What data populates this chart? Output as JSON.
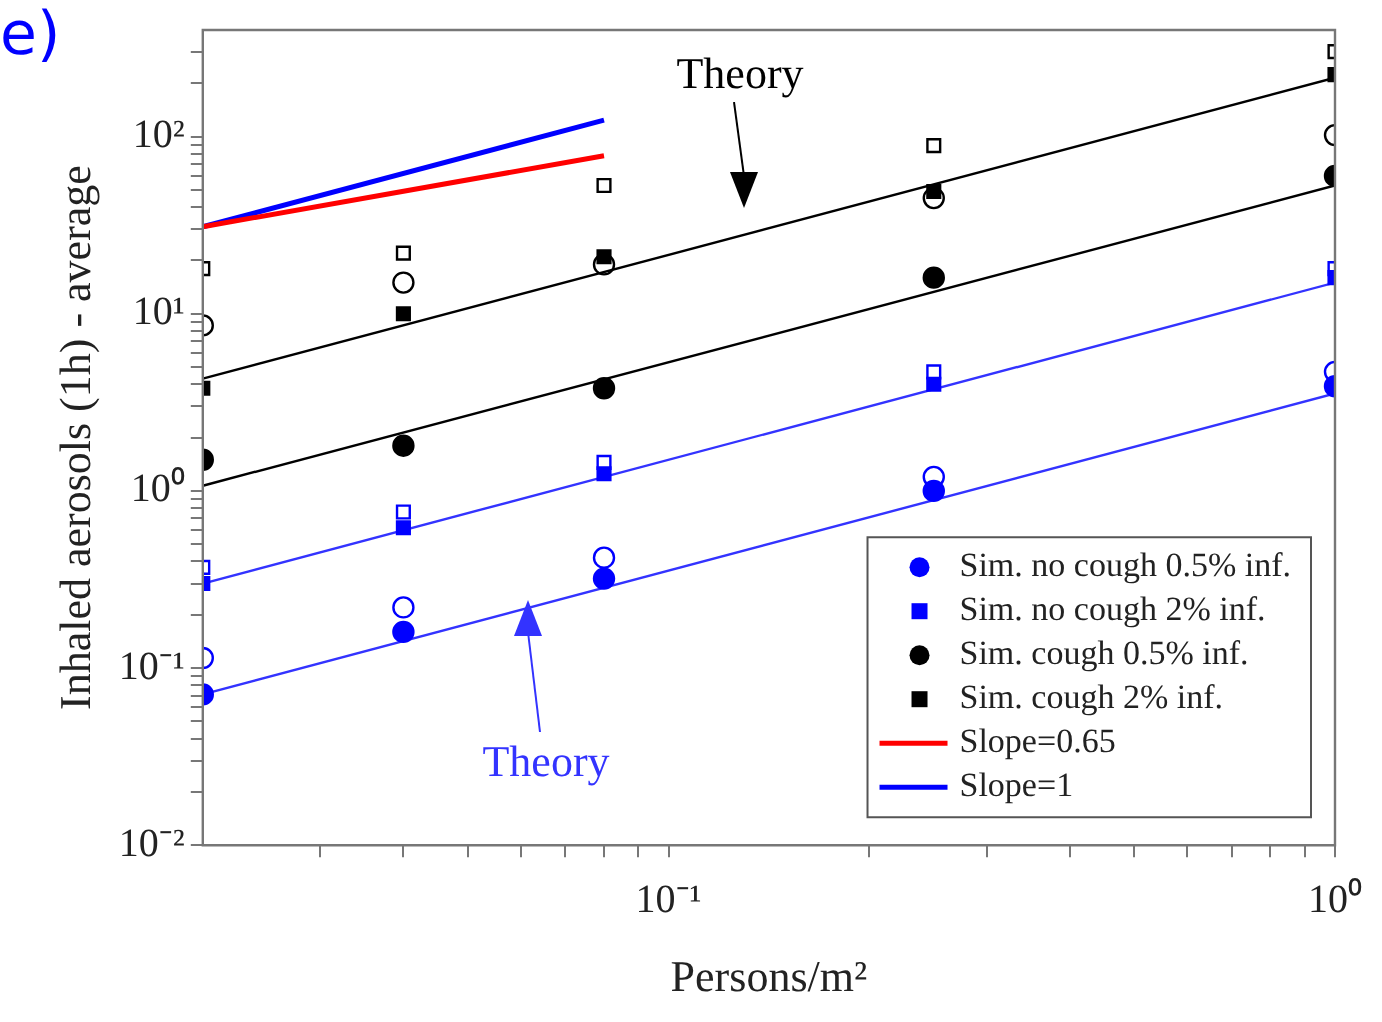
{
  "chart_data": {
    "type": "scatter",
    "title": "e)",
    "xlabel": "Persons/m²",
    "ylabel": "Inhaled aerosols (1h) - average",
    "log": "xy",
    "legend": "bottom right",
    "x": [
      0.02,
      0.04,
      0.08,
      0.25,
      1
    ],
    "xlim": [
      0.02,
      1
    ],
    "ylim": [
      0.01,
      400
    ],
    "xticks": [
      {
        "value": 0.03,
        "label": null
      },
      {
        "value": 0.04,
        "label": null
      },
      {
        "value": 0.05,
        "label": null
      },
      {
        "value": 0.06,
        "label": null
      },
      {
        "value": 0.07,
        "label": null
      },
      {
        "value": 0.08,
        "label": null
      },
      {
        "value": 0.09,
        "label": null
      },
      {
        "value": 0.1,
        "label": "10⁻¹"
      },
      {
        "value": 0.2,
        "label": null
      },
      {
        "value": 0.3,
        "label": null
      },
      {
        "value": 0.4,
        "label": null
      },
      {
        "value": 0.5,
        "label": null
      },
      {
        "value": 0.6,
        "label": null
      },
      {
        "value": 0.7,
        "label": null
      },
      {
        "value": 0.8,
        "label": null
      },
      {
        "value": 0.9,
        "label": null
      },
      {
        "value": 1,
        "label": "10⁰"
      }
    ],
    "yticks": [
      {
        "value": 0.01,
        "label": "10⁻²"
      },
      {
        "value": 0.02,
        "label": null
      },
      {
        "value": 0.03,
        "label": null
      },
      {
        "value": 0.04,
        "label": null
      },
      {
        "value": 0.05,
        "label": null
      },
      {
        "value": 0.06,
        "label": null
      },
      {
        "value": 0.07,
        "label": null
      },
      {
        "value": 0.08,
        "label": null
      },
      {
        "value": 0.09,
        "label": null
      },
      {
        "value": 0.1,
        "label": "10⁻¹"
      },
      {
        "value": 0.2,
        "label": null
      },
      {
        "value": 0.3,
        "label": null
      },
      {
        "value": 0.4,
        "label": null
      },
      {
        "value": 0.5,
        "label": null
      },
      {
        "value": 0.6,
        "label": null
      },
      {
        "value": 0.7,
        "label": null
      },
      {
        "value": 0.8,
        "label": null
      },
      {
        "value": 0.9,
        "label": null
      },
      {
        "value": 1,
        "label": "10⁰"
      },
      {
        "value": 2,
        "label": null
      },
      {
        "value": 3,
        "label": null
      },
      {
        "value": 4,
        "label": null
      },
      {
        "value": 5,
        "label": null
      },
      {
        "value": 6,
        "label": null
      },
      {
        "value": 7,
        "label": null
      },
      {
        "value": 8,
        "label": null
      },
      {
        "value": 9,
        "label": null
      },
      {
        "value": 10,
        "label": "10¹"
      },
      {
        "value": 20,
        "label": null
      },
      {
        "value": 30,
        "label": null
      },
      {
        "value": 40,
        "label": null
      },
      {
        "value": 50,
        "label": null
      },
      {
        "value": 60,
        "label": null
      },
      {
        "value": 70,
        "label": null
      },
      {
        "value": 80,
        "label": null
      },
      {
        "value": 90,
        "label": null
      },
      {
        "value": 100,
        "label": "10²"
      },
      {
        "value": 200,
        "label": null
      },
      {
        "value": 300,
        "label": null
      }
    ],
    "series": [
      {
        "name": "Sim. no cough 0.5% inf.",
        "marker": "circle",
        "color": "#0000ff",
        "values": [
          0.071,
          0.16,
          0.32,
          1.0,
          3.9
        ]
      },
      {
        "name": "Sim. no cough 2% inf.",
        "marker": "square",
        "color": "#0000ff",
        "values": [
          0.3,
          0.62,
          1.25,
          4.0,
          16
        ]
      },
      {
        "name": "Sim. cough 0.5% inf.",
        "marker": "circle",
        "color": "#000000",
        "values": [
          1.5,
          1.8,
          3.8,
          16,
          60
        ]
      },
      {
        "name": "Sim. cough 2% inf.",
        "marker": "square",
        "color": "#000000",
        "values": [
          3.8,
          10,
          21,
          49,
          224
        ]
      },
      {
        "marker": "circle",
        "color": "#0000ff",
        "values": [
          0.114,
          0.22,
          0.42,
          1.2,
          4.7
        ]
      },
      {
        "marker": "square",
        "color": "#0000ff",
        "values": [
          0.37,
          0.76,
          1.45,
          4.7,
          18
        ]
      },
      {
        "marker": "circle",
        "color": "#000000",
        "values": [
          8.6,
          15,
          19,
          45,
          102
        ]
      },
      {
        "marker": "square",
        "color": "#000000",
        "values": [
          18,
          22,
          53,
          89,
          302
        ]
      },
      {
        "type": "line",
        "color": "#3333ff",
        "x": [
          0.02,
          1
        ],
        "values": [
          0.071,
          3.55
        ]
      },
      {
        "type": "line",
        "color": "#3333ff",
        "x": [
          0.02,
          1
        ],
        "values": [
          0.3,
          15
        ]
      },
      {
        "type": "line",
        "color": "#000000",
        "x": [
          0.02,
          1
        ],
        "values": [
          1.07,
          53
        ]
      },
      {
        "type": "line",
        "color": "#000000",
        "x": [
          0.02,
          1
        ],
        "values": [
          4.3,
          215
        ]
      },
      {
        "name": "Slope=0.65",
        "type": "line",
        "color": "#ff0000",
        "x": [
          0.02,
          0.08
        ],
        "values": [
          31,
          78
        ]
      },
      {
        "name": "Slope=1",
        "type": "line",
        "color": "#0000ff",
        "x": [
          0.02,
          0.08
        ],
        "values": [
          31,
          124
        ]
      }
    ],
    "annotations": [
      "Theory",
      "Theory"
    ]
  }
}
